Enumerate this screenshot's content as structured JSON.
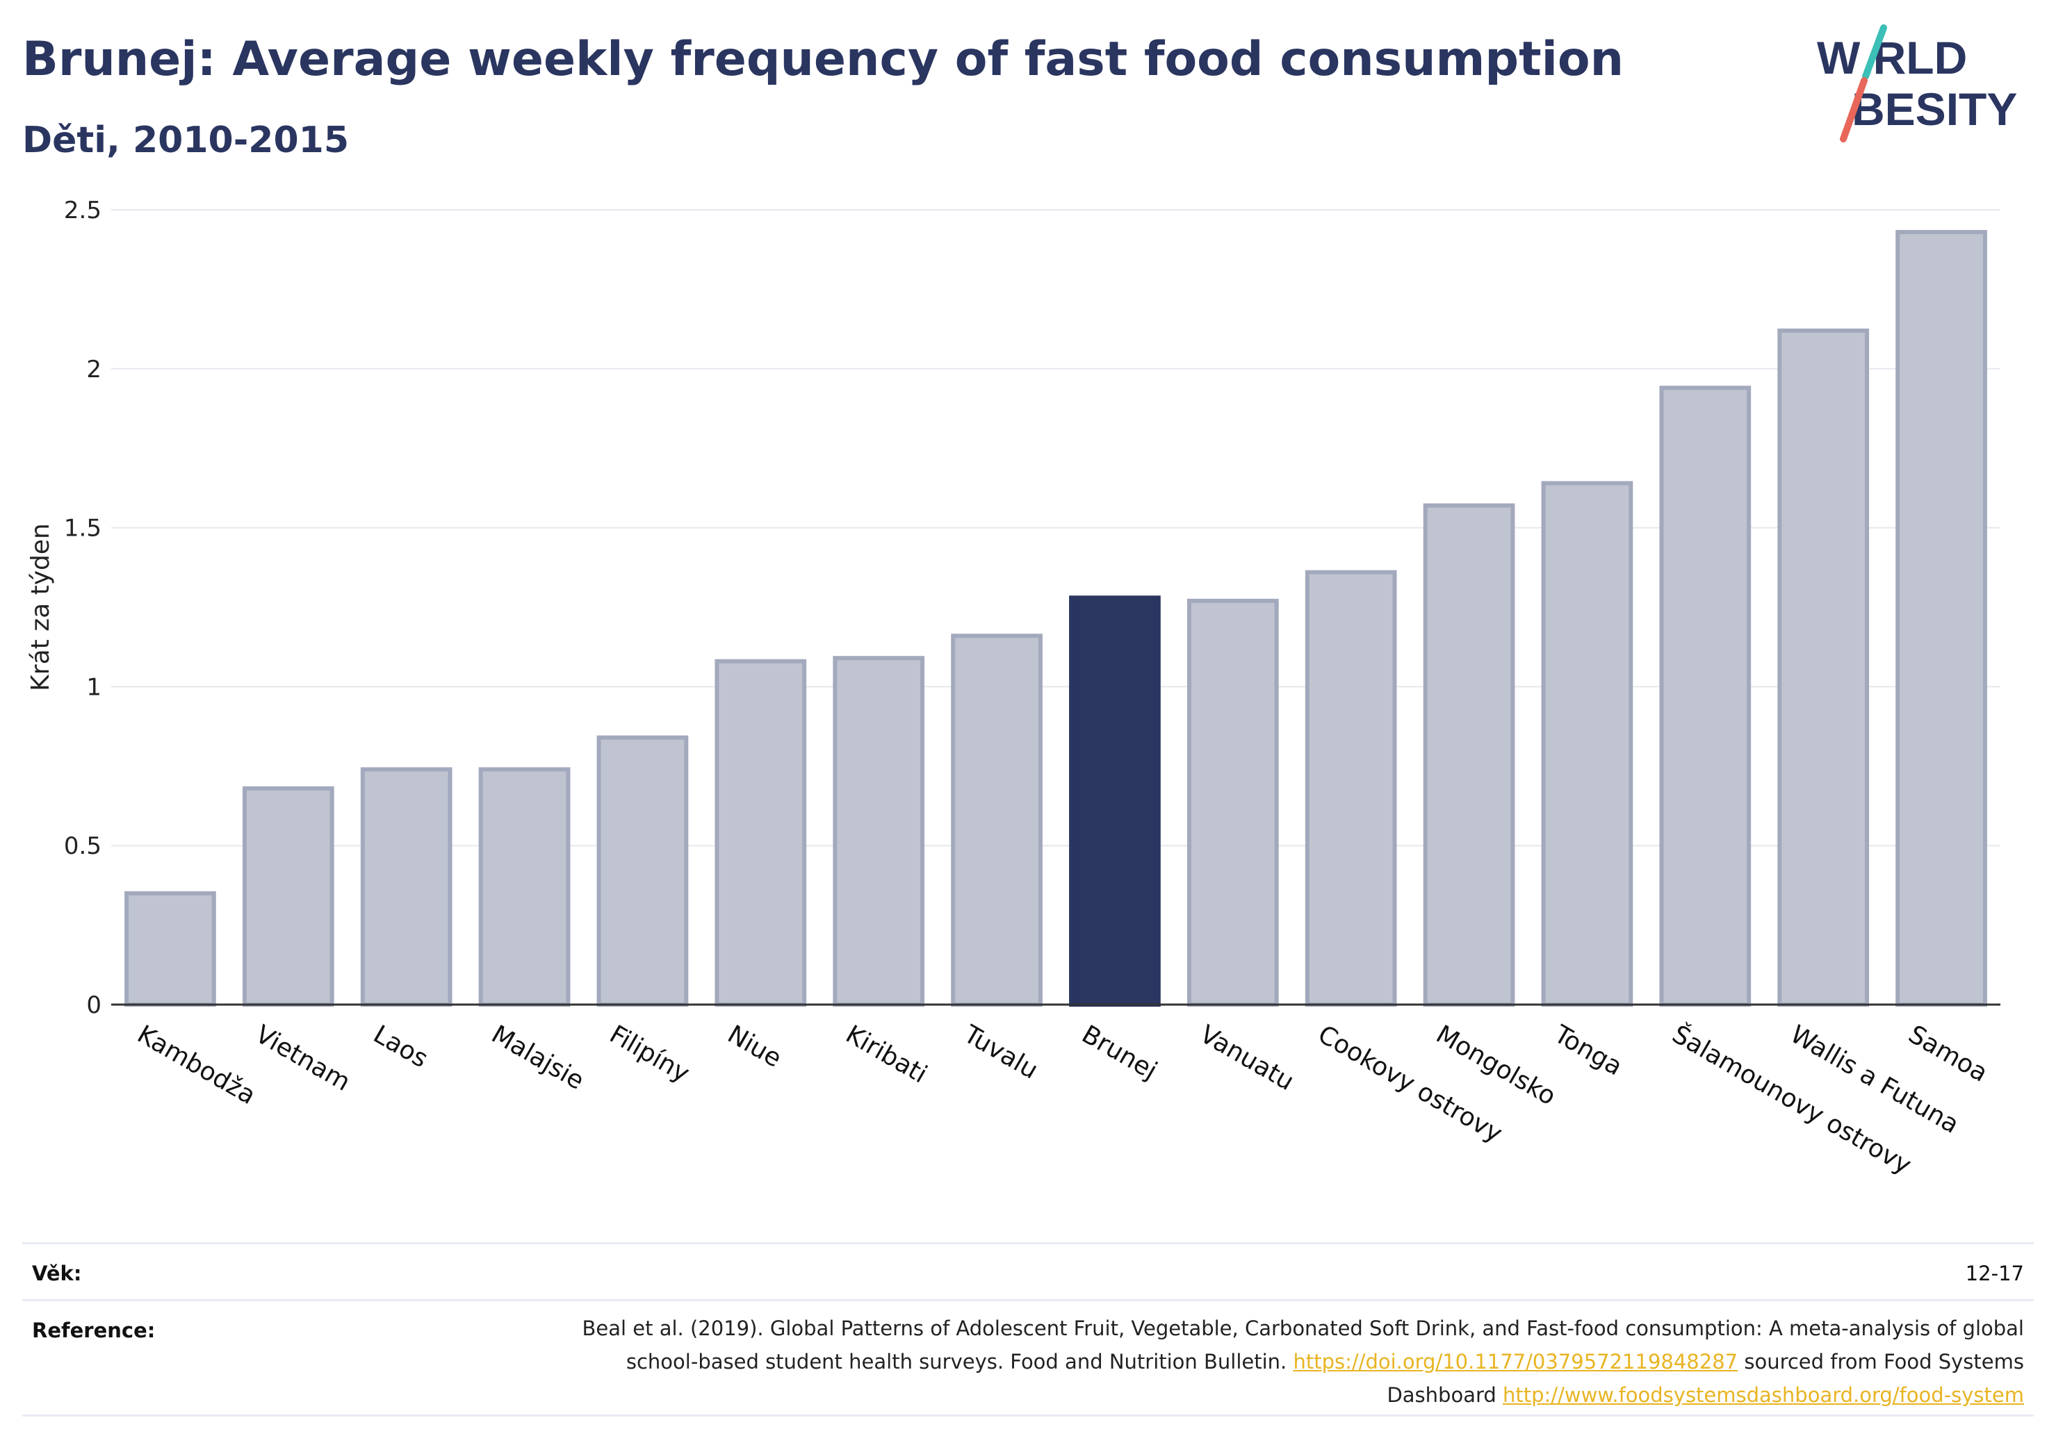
{
  "header": {
    "title": "Brunej: Average weekly frequency of fast food consumption",
    "subtitle": "Děti, 2010-2015"
  },
  "logo": {
    "line1": "W RLD",
    "line2": "BESITY",
    "accent_colors": [
      "#3bbfb7",
      "#e8665a"
    ],
    "text_color": "#2a3560"
  },
  "chart_data": {
    "type": "bar",
    "categories": [
      "Kambodža",
      "Vietnam",
      "Laos",
      "Malajsie",
      "Filipíny",
      "Niue",
      "Kiribati",
      "Tuvalu",
      "Brunej",
      "Vanuatu",
      "Cookovy ostrovy",
      "Mongolsko",
      "Tonga",
      "Šalamounovy ostrovy",
      "Wallis a Futuna",
      "Samoa"
    ],
    "values": [
      0.35,
      0.68,
      0.74,
      0.74,
      0.84,
      1.08,
      1.09,
      1.16,
      1.28,
      1.27,
      1.36,
      1.57,
      1.64,
      1.94,
      2.12,
      2.43
    ],
    "highlight": "Brunej",
    "ylabel": "Krát za týden",
    "ylim": [
      0,
      2.5
    ],
    "yticks": [
      0,
      0.5,
      1,
      1.5,
      2,
      2.5
    ],
    "ytick_labels": [
      "0",
      "0.5",
      "1",
      "1.5",
      "2",
      "2.5"
    ],
    "grid": true,
    "legend": "none",
    "colors": {
      "bar": "#c0c4d0",
      "bar_border": "#a3a9bd",
      "highlight": "#2a3560"
    }
  },
  "footer": {
    "age_label": "Věk:",
    "age_value": "12-17",
    "reference_label": "Reference:",
    "reference_text": "Beal et al. (2019). Global Patterns of Adolescent Fruit, Vegetable, Carbonated Soft Drink, and Fast-food consumption: A meta-analysis of global school-based student health surveys. Food and Nutrition Bulletin.",
    "reference_link1": "https://doi.org/10.1177/0379572119848287",
    "reference_mid": "sourced from Food Systems Dashboard",
    "reference_link2": "http://www.foodsystemsdashboard.org/food-system"
  }
}
